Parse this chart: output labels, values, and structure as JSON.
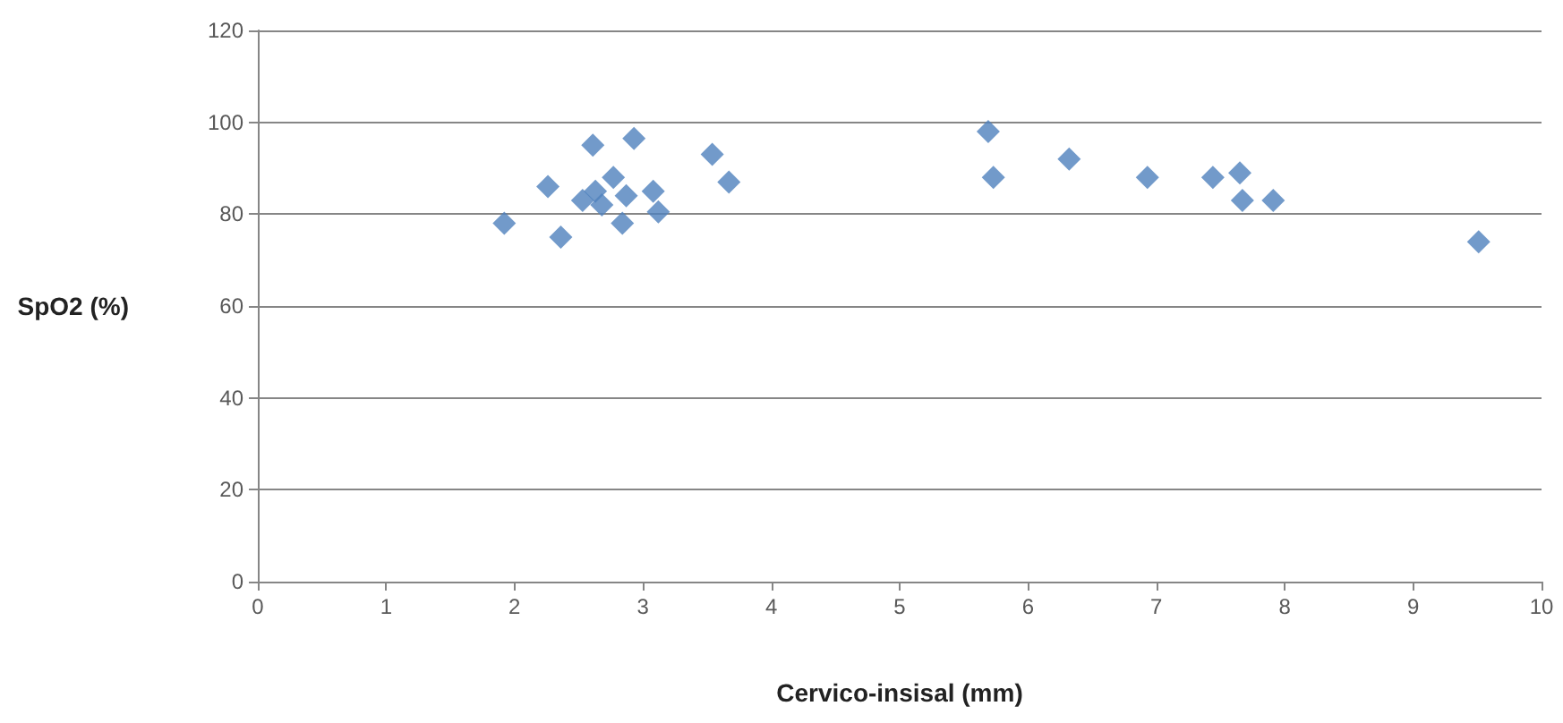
{
  "chart_data": {
    "type": "scatter",
    "xlabel": "Cervico-insisal (mm)",
    "ylabel": "SpO2 (%)",
    "x": [
      1.92,
      2.26,
      2.36,
      2.61,
      2.93,
      2.77,
      2.53,
      2.63,
      2.68,
      2.87,
      2.84,
      3.08,
      3.12,
      3.54,
      3.67,
      5.69,
      5.73,
      6.32,
      6.93,
      7.44,
      7.65,
      7.67,
      7.91,
      9.51
    ],
    "series": [
      {
        "color": "#4f81bd",
        "values": [
          78,
          86,
          75,
          95,
          96.5,
          88,
          83,
          85,
          82,
          84,
          78,
          85,
          80.5,
          93,
          87,
          98,
          88,
          92,
          88,
          88,
          89,
          83,
          83,
          74
        ]
      }
    ],
    "marker": "diamond",
    "xlim": [
      0,
      10
    ],
    "xticks": [
      0,
      1,
      2,
      3,
      4,
      5,
      6,
      7,
      8,
      9,
      10
    ],
    "ylim": [
      0,
      120
    ],
    "yticks": [
      0,
      20,
      40,
      60,
      80,
      100,
      120
    ],
    "grid": "y"
  }
}
